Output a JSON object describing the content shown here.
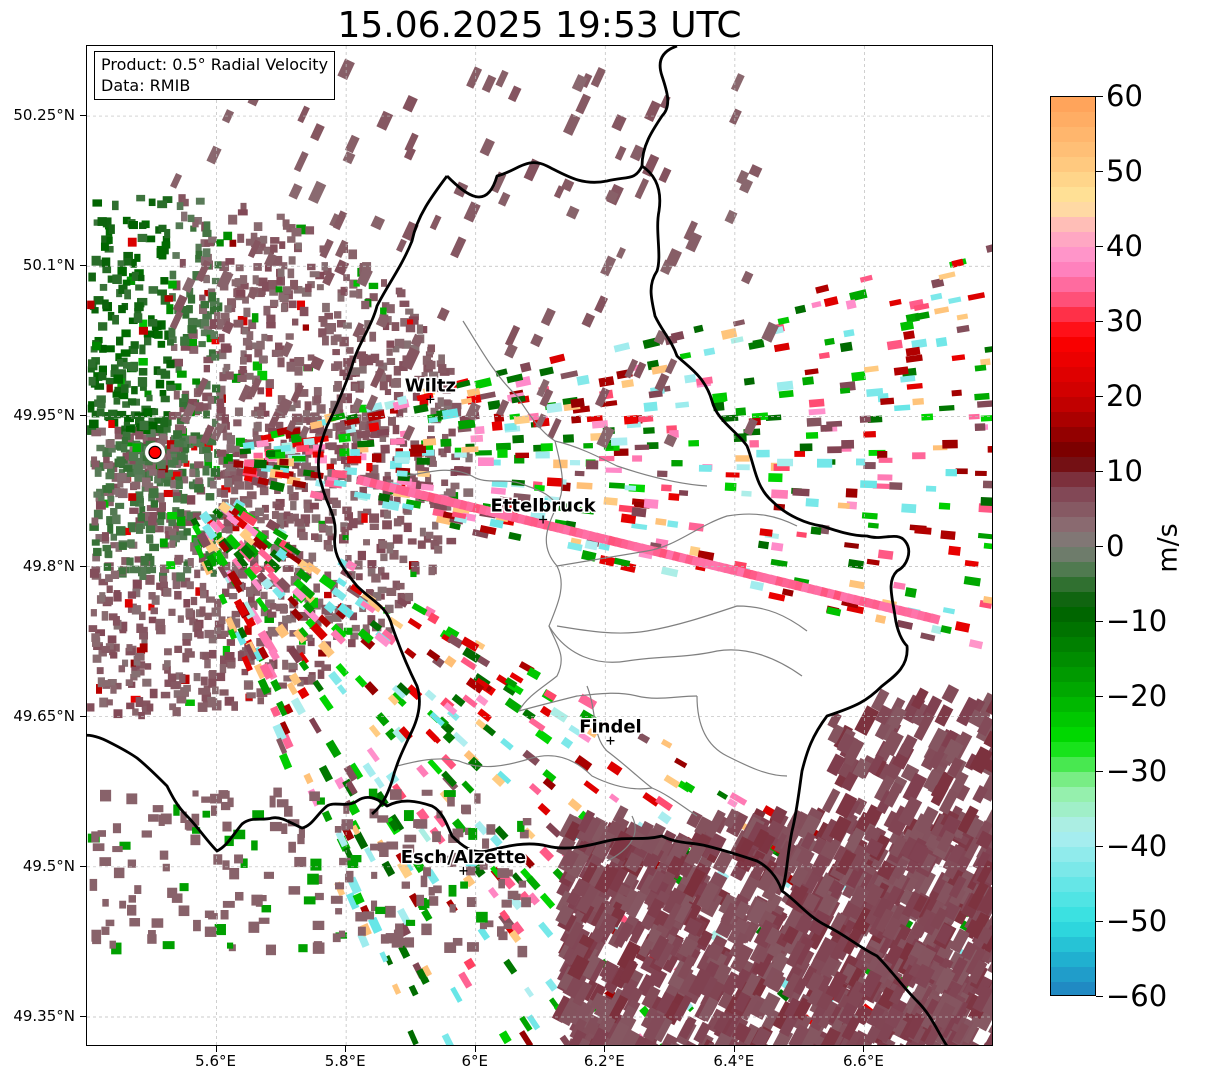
{
  "title": "15.06.2025 19:53 UTC",
  "info": {
    "product_line": "Product: 0.5° Radial Velocity",
    "data_line": "Data: RMIB"
  },
  "map": {
    "lon_range": [
      5.4,
      6.8
    ],
    "lat_range": [
      49.32,
      50.32
    ],
    "lat_ticks": [
      {
        "value": 50.25,
        "label": "50.25°N"
      },
      {
        "value": 50.1,
        "label": "50.1°N"
      },
      {
        "value": 49.95,
        "label": "49.95°N"
      },
      {
        "value": 49.8,
        "label": "49.8°N"
      },
      {
        "value": 49.65,
        "label": "49.65°N"
      },
      {
        "value": 49.5,
        "label": "49.5°N"
      },
      {
        "value": 49.35,
        "label": "49.35°N"
      }
    ],
    "lon_ticks": [
      {
        "value": 5.6,
        "label": "5.6°E"
      },
      {
        "value": 5.8,
        "label": "5.8°E"
      },
      {
        "value": 6.0,
        "label": "6°E"
      },
      {
        "value": 6.2,
        "label": "6.2°E"
      },
      {
        "value": 6.4,
        "label": "6.4°E"
      },
      {
        "value": 6.6,
        "label": "6.6°E"
      }
    ],
    "cities": [
      {
        "name": "Wiltz",
        "lon": 5.93,
        "lat": 49.967
      },
      {
        "name": "Ettelbruck",
        "lon": 6.104,
        "lat": 49.847
      },
      {
        "name": "Findel",
        "lon": 6.208,
        "lat": 49.626
      },
      {
        "name": "Esch/Alzette",
        "lon": 5.981,
        "lat": 49.496
      }
    ],
    "radar_site": {
      "lon": 5.505,
      "lat": 49.914
    },
    "colors": {
      "border": "#000000",
      "cantons": "#808080",
      "grid": "#bbbbbb",
      "radar_marker": "#ff0000"
    }
  },
  "colorbar": {
    "label": "m/s",
    "min": -60,
    "max": 60,
    "ticks": [
      {
        "value": 60,
        "label": "60"
      },
      {
        "value": 50,
        "label": "50"
      },
      {
        "value": 40,
        "label": "40"
      },
      {
        "value": 30,
        "label": "30"
      },
      {
        "value": 20,
        "label": "20"
      },
      {
        "value": 10,
        "label": "10"
      },
      {
        "value": 0,
        "label": "0"
      },
      {
        "value": -10,
        "label": "−10"
      },
      {
        "value": -20,
        "label": "−20"
      },
      {
        "value": -30,
        "label": "−30"
      },
      {
        "value": -40,
        "label": "−40"
      },
      {
        "value": -50,
        "label": "−50"
      },
      {
        "value": -60,
        "label": "−60"
      }
    ],
    "stops": [
      {
        "value": 60,
        "color": "#ffa057"
      },
      {
        "value": 52,
        "color": "#ffc37a"
      },
      {
        "value": 46,
        "color": "#ffe69a"
      },
      {
        "value": 42,
        "color": "#ffb0c0"
      },
      {
        "value": 38,
        "color": "#ff8ccc"
      },
      {
        "value": 34,
        "color": "#ff6090"
      },
      {
        "value": 28,
        "color": "#ff0000"
      },
      {
        "value": 20,
        "color": "#cc0000"
      },
      {
        "value": 12,
        "color": "#700000"
      },
      {
        "value": 8,
        "color": "#804050"
      },
      {
        "value": 3,
        "color": "#8a6a70"
      },
      {
        "value": 0,
        "color": "#7d7d78"
      },
      {
        "value": -3,
        "color": "#507a50"
      },
      {
        "value": -8,
        "color": "#006000"
      },
      {
        "value": -18,
        "color": "#00a000"
      },
      {
        "value": -26,
        "color": "#00e000"
      },
      {
        "value": -32,
        "color": "#90f0a0"
      },
      {
        "value": -38,
        "color": "#b0eef0"
      },
      {
        "value": -50,
        "color": "#30e0e0"
      },
      {
        "value": -55,
        "color": "#20b0d0"
      },
      {
        "value": -60,
        "color": "#2080c0"
      }
    ]
  }
}
